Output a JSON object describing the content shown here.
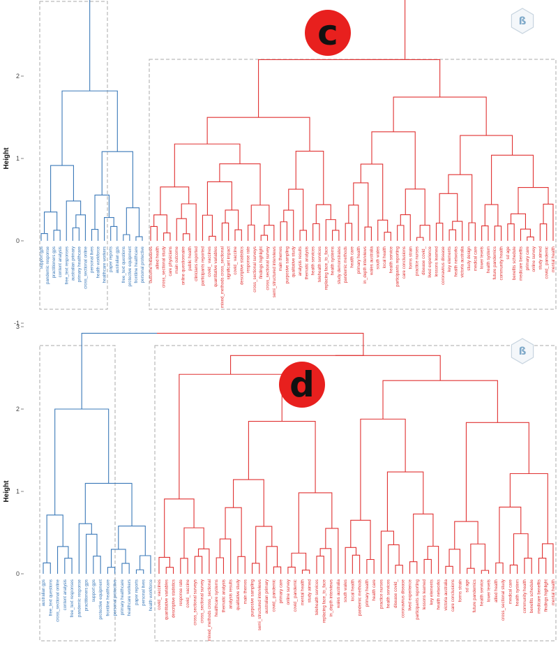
{
  "colors": {
    "cluster1": "#3a78b8",
    "cluster2": "#e03030",
    "box": "#aaaaaa",
    "badge": "#e8201e"
  },
  "logo_icon": "b-letter-hexagon-logo",
  "chart_data": [
    {
      "type": "dendrogram",
      "panel_label": "c",
      "ylabel": "Height",
      "ylim": [
        -1.1,
        2.9
      ],
      "yticks": [
        -1,
        0,
        1,
        2
      ],
      "clusters": [
        {
          "color": "#3a78b8",
          "leaves": [
            "support gps",
            "pandemic response",
            "practitioners gps",
            "content analysis",
            "free_text responses",
            "australian primary",
            "primary healthcare",
            "cross_sectional online",
            "personal lives",
            "health workforce",
            "healthcare workers",
            "paper reports",
            "australian gps",
            "free_text questions",
            "protective equipment",
            "frontline healthcare",
            "personal protective"
          ]
        },
        {
          "color": "#e03030",
          "leaves": [
            "outcome measures",
            "allied health",
            "cross_sectional study",
            "care physicians",
            "main outcome",
            "online questionnaire",
            "public health",
            "clinicians reported",
            "participants reported",
            "covid_ vaccines",
            "quantitative variables",
            "mixed_methods cross_sectional",
            "significant impact",
            "covid_ vaccine",
            "descriptive statistics",
            "response rate",
            "cross_sectional surveys",
            "findings highlight",
            "cross_sectional survey",
            "semi_structured interviews",
            "main themes",
            "purposive sampling",
            "qualitative study",
            "analysis results",
            "thematic analysis",
            "health services",
            "telehealth services",
            "replacing face_to_face",
            "health systems",
            "study demonstrates",
            "pandemic methods",
            "health care",
            "primary health",
            "in_depth interviews",
            "wales australia",
            "south wales",
            "local health",
            "health service",
            "participants reporting",
            "care conclusions",
            "forms strain",
            "practice nurses",
            "disease covid_",
            "lived experience",
            "lessons learned",
            "coronavirus disease",
            "key elements",
            "health networks",
            "victoria australia",
            "study design",
            "medical care",
            "lower levels",
            "health system",
            "future pandemics",
            "community health",
            "sd age",
            "benefits schedule",
            "medicare benefits",
            "primary care",
            "online survey",
            "study aimed",
            "covid_ pandemic",
            "mental health"
          ]
        }
      ]
    },
    {
      "type": "dendrogram",
      "panel_label": "d",
      "ylabel": "Height",
      "ylim": [
        -1.1,
        3.0
      ],
      "yticks": [
        -1,
        0,
        1,
        2,
        3
      ],
      "clusters": [
        {
          "color": "#3a78b8",
          "leaves": [
            "australian gps",
            "free_text questions",
            "cross_sectional online",
            "content analysis",
            "free_text responses",
            "pandemic response",
            "practitioners gps",
            "support gps",
            "protective equipment",
            "frontline healthcare",
            "personal protective",
            "primary healthcare",
            "healthcare workers",
            "paper reports",
            "personal lives",
            "health workforce"
          ]
        },
        {
          "color": "#e03030",
          "leaves": [
            "covid_ vaccines",
            "quantitative variables",
            "descriptive statistics",
            "response rate",
            "covid_ vaccine",
            "cross_sectional surveys",
            "cross_sectional survey",
            "mixed_methods cross_sectional",
            "healthcare systems",
            "thematic analysis",
            "analysis results",
            "qualitative study",
            "main themes",
            "purposive sampling",
            "semi_structured interviews",
            "australian primary",
            "covid_ pandemic",
            "primary care",
            "online survey",
            "covid_ pandemic",
            "mental health",
            "study aimed",
            "telehealth services",
            "replacing face_to_face",
            "in_depth interviews",
            "wales australia",
            "south wales",
            "local health",
            "pandemic methods",
            "primary health",
            "health care",
            "practice nurses",
            "health services",
            "disease covid_",
            "coronavirus disease",
            "lived experience",
            "participants reporting",
            "lessons learned",
            "key elements",
            "health networks",
            "victoria australia",
            "care conclusions",
            "forms strain",
            "sd age",
            "future pandemics",
            "health service",
            "lower levels",
            "allied health",
            "cross_sectional study",
            "medical care",
            "health system",
            "community health",
            "benefits schedule",
            "medicare benefits",
            "findings highlight",
            "mental health"
          ]
        }
      ]
    }
  ]
}
